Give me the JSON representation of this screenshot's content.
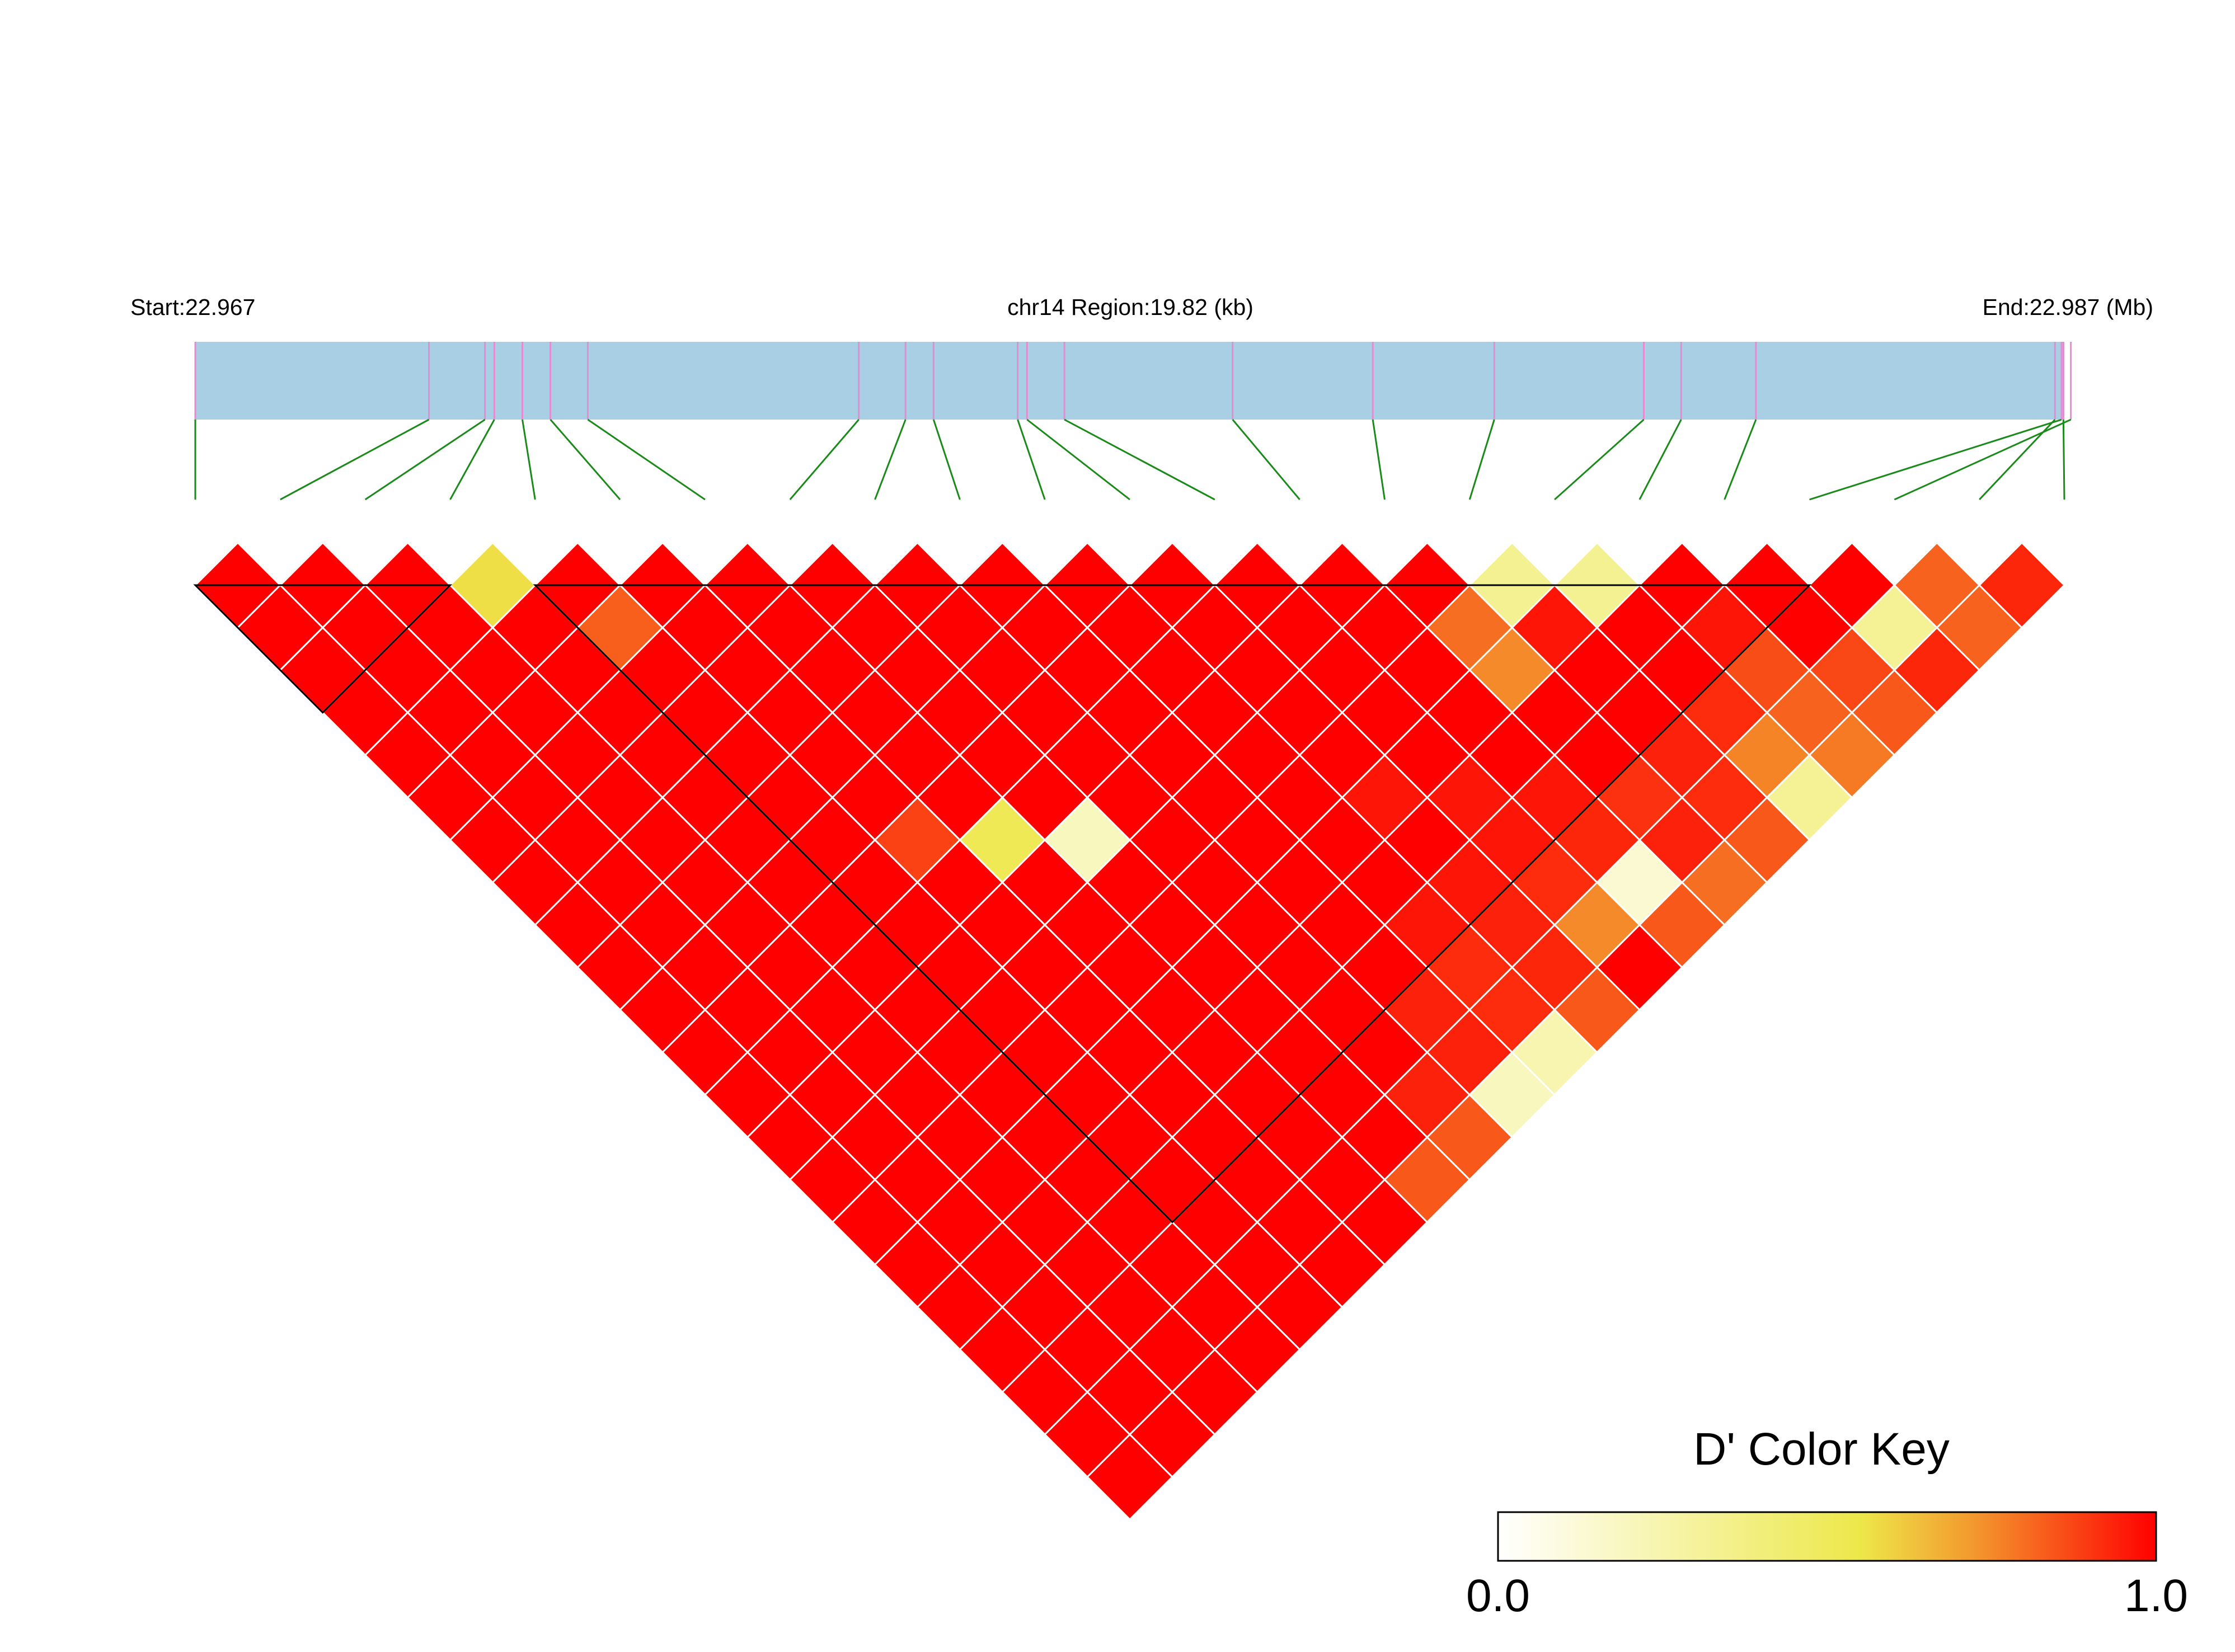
{
  "header": {
    "start_label": "Start:22.967",
    "region_label": "chr14 Region:19.82 (kb)",
    "end_label": "End:22.987 (Mb)"
  },
  "colors": {
    "track_fill": "#a8cfe4",
    "snp_tick": "#e58bd1",
    "connector": "#1a8a1a",
    "high": "#ff0000",
    "low": "#ffffff"
  },
  "chart_data": {
    "type": "heatmap",
    "metric": "D'",
    "chromosome": "chr14",
    "region_start_mb": 22.967,
    "region_end_mb": 22.987,
    "region_size_kb": 19.82,
    "n_snps": 23,
    "snp_positions_mb": [
      22.967,
      22.9695,
      22.9701,
      22.9702,
      22.9705,
      22.9708,
      22.9712,
      22.9741,
      22.9746,
      22.9749,
      22.9758,
      22.9759,
      22.9763,
      22.9781,
      22.9796,
      22.9809,
      22.9825,
      22.9829,
      22.9837,
      22.98697,
      22.98707,
      22.9869,
      22.98699
    ],
    "ld_blocks": [
      [
        1,
        4
      ],
      [
        5,
        20
      ]
    ],
    "ld_dprime": [
      [
        0,
        0,
        0,
        0,
        0,
        0,
        0,
        0,
        0,
        0,
        0,
        0,
        0,
        0,
        0,
        0,
        0,
        0,
        0,
        0,
        0,
        0,
        0
      ],
      [
        1.0,
        0,
        0,
        0,
        0,
        0,
        0,
        0,
        0,
        0,
        0,
        0,
        0,
        0,
        0,
        0,
        0,
        0,
        0,
        0,
        0,
        0,
        0
      ],
      [
        1.0,
        1.0,
        0,
        0,
        0,
        0,
        0,
        0,
        0,
        0,
        0,
        0,
        0,
        0,
        0,
        0,
        0,
        0,
        0,
        0,
        0,
        0,
        0
      ],
      [
        1.0,
        1.0,
        1.0,
        0,
        0,
        0,
        0,
        0,
        0,
        0,
        0,
        0,
        0,
        0,
        0,
        0,
        0,
        0,
        0,
        0,
        0,
        0,
        0
      ],
      [
        1.0,
        1.0,
        1.0,
        0.57,
        0,
        0,
        0,
        0,
        0,
        0,
        0,
        0,
        0,
        0,
        0,
        0,
        0,
        0,
        0,
        0,
        0,
        0,
        0
      ],
      [
        1.0,
        1.0,
        1.0,
        1.0,
        1.0,
        0,
        0,
        0,
        0,
        0,
        0,
        0,
        0,
        0,
        0,
        0,
        0,
        0,
        0,
        0,
        0,
        0,
        0
      ],
      [
        1.0,
        1.0,
        1.0,
        1.0,
        0.83,
        1.0,
        0,
        0,
        0,
        0,
        0,
        0,
        0,
        0,
        0,
        0,
        0,
        0,
        0,
        0,
        0,
        0,
        0
      ],
      [
        1.0,
        1.0,
        1.0,
        1.0,
        1.0,
        1.0,
        1.0,
        0,
        0,
        0,
        0,
        0,
        0,
        0,
        0,
        0,
        0,
        0,
        0,
        0,
        0,
        0,
        0
      ],
      [
        1.0,
        1.0,
        1.0,
        1.0,
        1.0,
        1.0,
        1.0,
        1.0,
        0,
        0,
        0,
        0,
        0,
        0,
        0,
        0,
        0,
        0,
        0,
        0,
        0,
        0,
        0
      ],
      [
        1.0,
        1.0,
        1.0,
        1.0,
        1.0,
        1.0,
        1.0,
        1.0,
        1.0,
        0,
        0,
        0,
        0,
        0,
        0,
        0,
        0,
        0,
        0,
        0,
        0,
        0,
        0
      ],
      [
        1.0,
        1.0,
        1.0,
        1.0,
        1.0,
        1.0,
        1.0,
        1.0,
        1.0,
        1.0,
        0,
        0,
        0,
        0,
        0,
        0,
        0,
        0,
        0,
        0,
        0,
        0,
        0
      ],
      [
        1.0,
        1.0,
        1.0,
        1.0,
        1.0,
        1.0,
        1.0,
        1.0,
        1.0,
        1.0,
        1.0,
        0,
        0,
        0,
        0,
        0,
        0,
        0,
        0,
        0,
        0,
        0,
        0
      ],
      [
        1.0,
        1.0,
        1.0,
        1.0,
        1.0,
        0.88,
        1.0,
        1.0,
        1.0,
        1.0,
        1.0,
        1.0,
        0,
        0,
        0,
        0,
        0,
        0,
        0,
        0,
        0,
        0,
        0
      ],
      [
        1.0,
        1.0,
        1.0,
        1.0,
        1.0,
        1.0,
        0.52,
        1.0,
        1.0,
        1.0,
        1.0,
        1.0,
        1.0,
        0,
        0,
        0,
        0,
        0,
        0,
        0,
        0,
        0,
        0
      ],
      [
        1.0,
        1.0,
        1.0,
        1.0,
        1.0,
        1.0,
        1.0,
        0.2,
        1.0,
        1.0,
        1.0,
        1.0,
        1.0,
        1.0,
        0,
        0,
        0,
        0,
        0,
        0,
        0,
        0,
        0
      ],
      [
        1.0,
        1.0,
        1.0,
        1.0,
        1.0,
        1.0,
        1.0,
        1.0,
        1.0,
        1.0,
        1.0,
        1.0,
        1.0,
        1.0,
        1.0,
        0,
        0,
        0,
        0,
        0,
        0,
        0,
        0
      ],
      [
        1.0,
        1.0,
        1.0,
        1.0,
        1.0,
        1.0,
        1.0,
        1.0,
        1.0,
        1.0,
        1.0,
        1.0,
        1.0,
        1.0,
        0.8,
        0.33,
        0,
        0,
        0,
        0,
        0,
        0,
        0
      ],
      [
        1.0,
        1.0,
        1.0,
        1.0,
        1.0,
        1.0,
        1.0,
        1.0,
        1.0,
        1.0,
        1.0,
        0.96,
        1.0,
        1.0,
        0.75,
        0.96,
        0.33,
        0,
        0,
        0,
        0,
        0,
        0
      ],
      [
        1.0,
        1.0,
        1.0,
        1.0,
        1.0,
        1.0,
        1.0,
        1.0,
        1.0,
        1.0,
        1.0,
        1.0,
        0.96,
        1.0,
        1.0,
        1.0,
        1.0,
        1.0,
        0,
        0,
        0,
        0,
        0
      ],
      [
        1.0,
        1.0,
        1.0,
        1.0,
        1.0,
        1.0,
        1.0,
        1.0,
        1.0,
        1.0,
        0.96,
        0.96,
        0.96,
        0.96,
        1.0,
        1.0,
        1.0,
        0.96,
        1.0,
        0,
        0,
        0,
        0
      ],
      [
        1.0,
        1.0,
        1.0,
        1.0,
        1.0,
        1.0,
        1.0,
        1.0,
        1.0,
        0.94,
        0.92,
        0.94,
        0.92,
        0.93,
        0.91,
        0.94,
        0.92,
        0.86,
        1.0,
        1.0,
        0,
        0,
        0
      ],
      [
        1.0,
        1.0,
        1.0,
        1.0,
        1.0,
        1.0,
        1.0,
        1.0,
        0.94,
        0.94,
        0.92,
        0.93,
        0.75,
        0.14,
        0.94,
        0.92,
        0.76,
        0.82,
        0.87,
        0.32,
        0.82,
        0,
        0
      ],
      [
        1.0,
        1.0,
        1.0,
        1.0,
        1.0,
        1.0,
        1.0,
        0.84,
        0.84,
        0.2,
        0.24,
        0.84,
        1.0,
        0.84,
        0.8,
        0.84,
        0.32,
        0.78,
        0.84,
        0.93,
        0.82,
        0.93,
        0
      ]
    ]
  },
  "color_key": {
    "title": "D' Color Key",
    "min_label": "0.0",
    "max_label": "1.0"
  }
}
